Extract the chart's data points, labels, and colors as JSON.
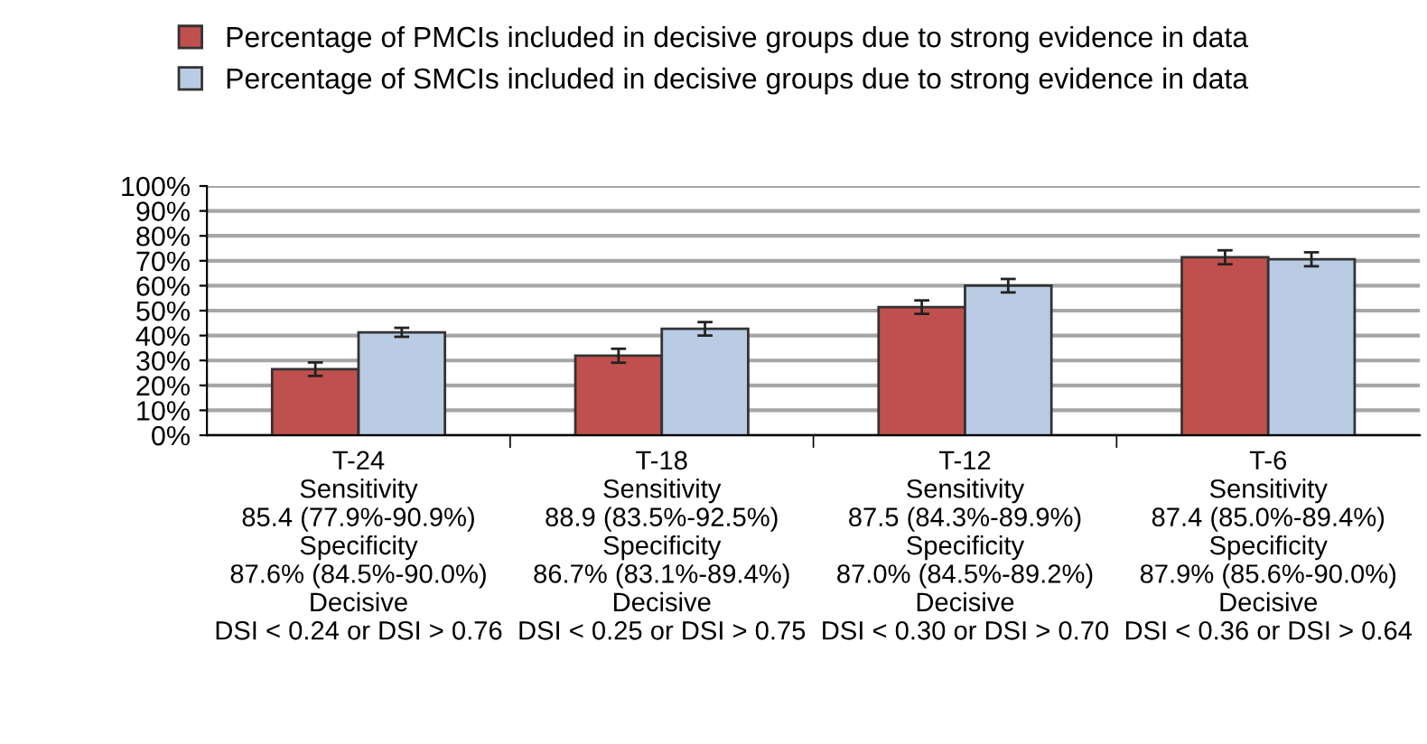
{
  "chart_data": {
    "type": "bar",
    "categories": [
      "T-24\nSensitivity\n85.4 (77.9%-90.9%)\nSpecificity\n87.6% (84.5%-90.0%)\nDecisive\nDSI < 0.24 or DSI > 0.76",
      "T-18\nSensitivity\n88.9 (83.5%-92.5%)\nSpecificity\n86.7% (83.1%-89.4%)\nDecisive\nDSI < 0.25 or DSI > 0.75",
      "T-12\nSensitivity\n87.5 (84.3%-89.9%)\nSpecificity\n87.0% (84.5%-89.2%)\nDecisive\nDSI < 0.30 or DSI > 0.70",
      "T-6\nSensitivity\n87.4 (85.0%-89.4%)\nSpecificity\n87.9% (85.6%-90.0%)\nDecisive\nDSI < 0.36 or DSI > 0.64"
    ],
    "series": [
      {
        "name": "Percentage of PMCIs included in decisive groups due to strong evidence in data",
        "color": "#c0504d",
        "values": [
          26.5,
          31.9,
          51.4,
          71.4
        ],
        "errors": [
          2.7,
          2.8,
          2.7,
          2.8
        ]
      },
      {
        "name": "Percentage of SMCIs included in decisive groups due to strong evidence in data",
        "color": "#b9cce4",
        "values": [
          41.3,
          42.7,
          60.0,
          70.6
        ],
        "errors": [
          1.8,
          2.7,
          2.7,
          2.8
        ]
      }
    ],
    "ylim": [
      0,
      100
    ],
    "yticks": [
      {
        "value": 0,
        "label": "0%"
      },
      {
        "value": 10,
        "label": "10%"
      },
      {
        "value": 20,
        "label": "20%"
      },
      {
        "value": 30,
        "label": "30%"
      },
      {
        "value": 40,
        "label": "40%"
      },
      {
        "value": 50,
        "label": "50%"
      },
      {
        "value": 60,
        "label": "60%"
      },
      {
        "value": 70,
        "label": "70%"
      },
      {
        "value": 80,
        "label": "80%"
      },
      {
        "value": 90,
        "label": "90%"
      },
      {
        "value": 100,
        "label": "100%"
      }
    ],
    "grid": "y",
    "legend": "top"
  }
}
